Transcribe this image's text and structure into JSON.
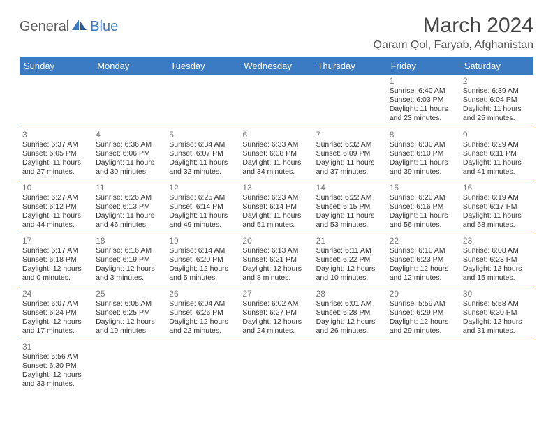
{
  "brand": {
    "general": "General",
    "blue": "Blue"
  },
  "title": "March 2024",
  "location": "Qaram Qol, Faryab, Afghanistan",
  "colors": {
    "header_bg": "#3b7bc4",
    "header_text": "#ffffff",
    "border": "#3b7bc4",
    "daynum": "#777777",
    "text": "#333333",
    "logo_gray": "#5a5a5a",
    "logo_blue": "#3b7bc4"
  },
  "day_labels": [
    "Sunday",
    "Monday",
    "Tuesday",
    "Wednesday",
    "Thursday",
    "Friday",
    "Saturday"
  ],
  "weeks": [
    [
      null,
      null,
      null,
      null,
      null,
      {
        "n": "1",
        "sunrise": "6:40 AM",
        "sunset": "6:03 PM",
        "daylight": "11 hours and 23 minutes."
      },
      {
        "n": "2",
        "sunrise": "6:39 AM",
        "sunset": "6:04 PM",
        "daylight": "11 hours and 25 minutes."
      }
    ],
    [
      {
        "n": "3",
        "sunrise": "6:37 AM",
        "sunset": "6:05 PM",
        "daylight": "11 hours and 27 minutes."
      },
      {
        "n": "4",
        "sunrise": "6:36 AM",
        "sunset": "6:06 PM",
        "daylight": "11 hours and 30 minutes."
      },
      {
        "n": "5",
        "sunrise": "6:34 AM",
        "sunset": "6:07 PM",
        "daylight": "11 hours and 32 minutes."
      },
      {
        "n": "6",
        "sunrise": "6:33 AM",
        "sunset": "6:08 PM",
        "daylight": "11 hours and 34 minutes."
      },
      {
        "n": "7",
        "sunrise": "6:32 AM",
        "sunset": "6:09 PM",
        "daylight": "11 hours and 37 minutes."
      },
      {
        "n": "8",
        "sunrise": "6:30 AM",
        "sunset": "6:10 PM",
        "daylight": "11 hours and 39 minutes."
      },
      {
        "n": "9",
        "sunrise": "6:29 AM",
        "sunset": "6:11 PM",
        "daylight": "11 hours and 41 minutes."
      }
    ],
    [
      {
        "n": "10",
        "sunrise": "6:27 AM",
        "sunset": "6:12 PM",
        "daylight": "11 hours and 44 minutes."
      },
      {
        "n": "11",
        "sunrise": "6:26 AM",
        "sunset": "6:13 PM",
        "daylight": "11 hours and 46 minutes."
      },
      {
        "n": "12",
        "sunrise": "6:25 AM",
        "sunset": "6:14 PM",
        "daylight": "11 hours and 49 minutes."
      },
      {
        "n": "13",
        "sunrise": "6:23 AM",
        "sunset": "6:14 PM",
        "daylight": "11 hours and 51 minutes."
      },
      {
        "n": "14",
        "sunrise": "6:22 AM",
        "sunset": "6:15 PM",
        "daylight": "11 hours and 53 minutes."
      },
      {
        "n": "15",
        "sunrise": "6:20 AM",
        "sunset": "6:16 PM",
        "daylight": "11 hours and 56 minutes."
      },
      {
        "n": "16",
        "sunrise": "6:19 AM",
        "sunset": "6:17 PM",
        "daylight": "11 hours and 58 minutes."
      }
    ],
    [
      {
        "n": "17",
        "sunrise": "6:17 AM",
        "sunset": "6:18 PM",
        "daylight": "12 hours and 0 minutes."
      },
      {
        "n": "18",
        "sunrise": "6:16 AM",
        "sunset": "6:19 PM",
        "daylight": "12 hours and 3 minutes."
      },
      {
        "n": "19",
        "sunrise": "6:14 AM",
        "sunset": "6:20 PM",
        "daylight": "12 hours and 5 minutes."
      },
      {
        "n": "20",
        "sunrise": "6:13 AM",
        "sunset": "6:21 PM",
        "daylight": "12 hours and 8 minutes."
      },
      {
        "n": "21",
        "sunrise": "6:11 AM",
        "sunset": "6:22 PM",
        "daylight": "12 hours and 10 minutes."
      },
      {
        "n": "22",
        "sunrise": "6:10 AM",
        "sunset": "6:23 PM",
        "daylight": "12 hours and 12 minutes."
      },
      {
        "n": "23",
        "sunrise": "6:08 AM",
        "sunset": "6:23 PM",
        "daylight": "12 hours and 15 minutes."
      }
    ],
    [
      {
        "n": "24",
        "sunrise": "6:07 AM",
        "sunset": "6:24 PM",
        "daylight": "12 hours and 17 minutes."
      },
      {
        "n": "25",
        "sunrise": "6:05 AM",
        "sunset": "6:25 PM",
        "daylight": "12 hours and 19 minutes."
      },
      {
        "n": "26",
        "sunrise": "6:04 AM",
        "sunset": "6:26 PM",
        "daylight": "12 hours and 22 minutes."
      },
      {
        "n": "27",
        "sunrise": "6:02 AM",
        "sunset": "6:27 PM",
        "daylight": "12 hours and 24 minutes."
      },
      {
        "n": "28",
        "sunrise": "6:01 AM",
        "sunset": "6:28 PM",
        "daylight": "12 hours and 26 minutes."
      },
      {
        "n": "29",
        "sunrise": "5:59 AM",
        "sunset": "6:29 PM",
        "daylight": "12 hours and 29 minutes."
      },
      {
        "n": "30",
        "sunrise": "5:58 AM",
        "sunset": "6:30 PM",
        "daylight": "12 hours and 31 minutes."
      }
    ],
    [
      {
        "n": "31",
        "sunrise": "5:56 AM",
        "sunset": "6:30 PM",
        "daylight": "12 hours and 33 minutes."
      },
      null,
      null,
      null,
      null,
      null,
      null
    ]
  ]
}
